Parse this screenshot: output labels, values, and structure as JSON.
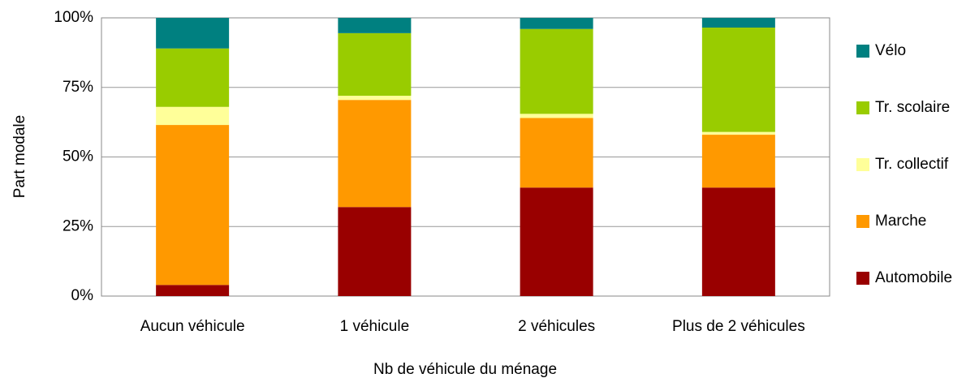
{
  "chart_data": {
    "type": "stacked_bar",
    "categories": [
      "Aucun véhicule",
      "1 véhicule",
      "2 véhicules",
      "Plus de 2 véhicules"
    ],
    "series": [
      {
        "name": "Automobile",
        "color": "#990000",
        "values": [
          4,
          32,
          39,
          39
        ]
      },
      {
        "name": "Marche",
        "color": "#ff9900",
        "values": [
          57.5,
          38.5,
          25,
          19
        ]
      },
      {
        "name": "Tr. collectif",
        "color": "#ffff99",
        "values": [
          6.5,
          1.5,
          1.5,
          1
        ]
      },
      {
        "name": "Tr. scolaire",
        "color": "#99cc00",
        "values": [
          21,
          22.5,
          30.5,
          37.5
        ]
      },
      {
        "name": "Vélo",
        "color": "#008080",
        "values": [
          11,
          5.5,
          4,
          3.5
        ]
      }
    ],
    "xlabel": "Nb de véhicule du ménage",
    "ylabel": "Part modale",
    "ylim": [
      0,
      100
    ],
    "yticks": [
      {
        "value": 0,
        "label": "0%"
      },
      {
        "value": 25,
        "label": "25%"
      },
      {
        "value": 50,
        "label": "50%"
      },
      {
        "value": 75,
        "label": "75%"
      },
      {
        "value": 100,
        "label": "100%"
      }
    ],
    "grid": true,
    "legend": "right"
  }
}
